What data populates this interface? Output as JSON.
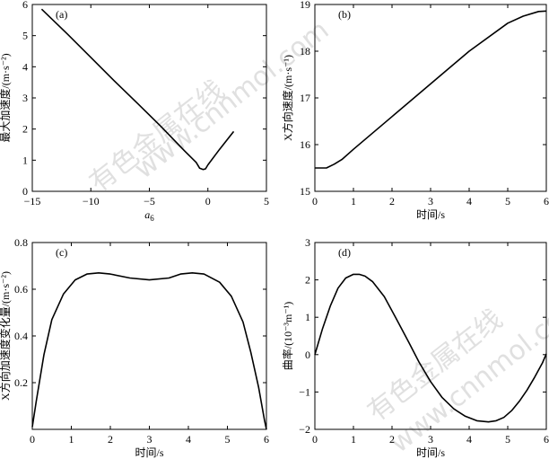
{
  "watermark": {
    "cn": "有色金属在线",
    "url": "www.cnnmol.com"
  },
  "chart_data": [
    {
      "panel": "(a)",
      "type": "line",
      "xlabel": "a",
      "xlabel_sub": "6",
      "ylabel": "最大加速度/(m·s⁻²)",
      "xlim": [
        -15,
        5
      ],
      "ylim": [
        0,
        6
      ],
      "xticks": [
        -15,
        -10,
        -5,
        0,
        5
      ],
      "yticks": [
        0,
        1,
        2,
        3,
        4,
        5,
        6
      ],
      "x": [
        -14.2,
        -12,
        -10,
        -8,
        -6,
        -4,
        -2,
        -1.0,
        -0.7,
        -0.4,
        -0.2,
        0,
        1,
        2.2
      ],
      "y": [
        5.85,
        5.05,
        4.3,
        3.55,
        2.82,
        2.08,
        1.3,
        0.93,
        0.74,
        0.7,
        0.72,
        0.85,
        1.35,
        1.92
      ]
    },
    {
      "panel": "(b)",
      "type": "line",
      "xlabel": "时间/s",
      "ylabel": "X方向速度/(m·s⁻¹)",
      "xlim": [
        0,
        6
      ],
      "ylim": [
        15,
        19
      ],
      "xticks": [
        0,
        1,
        2,
        3,
        4,
        5,
        6
      ],
      "yticks": [
        15,
        16,
        17,
        18,
        19
      ],
      "x": [
        0,
        0.3,
        0.5,
        0.7,
        1,
        2,
        3,
        4,
        5,
        5.4,
        5.8,
        6
      ],
      "y": [
        15.5,
        15.5,
        15.58,
        15.68,
        15.9,
        16.6,
        17.3,
        18.0,
        18.6,
        18.75,
        18.85,
        18.86
      ]
    },
    {
      "panel": "(c)",
      "type": "line",
      "xlabel": "时间/s",
      "ylabel": "X方向加速度变化量/(m·s⁻²)",
      "xlim": [
        0,
        6
      ],
      "ylim": [
        0,
        0.8
      ],
      "xticks": [
        0,
        1,
        2,
        3,
        4,
        5,
        6
      ],
      "yticks": [
        0.2,
        0.4,
        0.6,
        0.8
      ],
      "x": [
        0,
        0.1,
        0.3,
        0.5,
        0.8,
        1.1,
        1.4,
        1.7,
        2.0,
        2.5,
        3.0,
        3.5,
        3.8,
        4.1,
        4.4,
        4.8,
        5.1,
        5.4,
        5.6,
        5.8,
        5.95,
        6
      ],
      "y": [
        0.01,
        0.12,
        0.32,
        0.47,
        0.58,
        0.64,
        0.665,
        0.67,
        0.665,
        0.648,
        0.64,
        0.648,
        0.665,
        0.67,
        0.665,
        0.63,
        0.57,
        0.46,
        0.33,
        0.18,
        0.04,
        0.0
      ]
    },
    {
      "panel": "(d)",
      "type": "line",
      "xlabel": "时间/s",
      "ylabel": "曲率/(10⁻³m⁻¹)",
      "xlim": [
        0,
        6
      ],
      "ylim": [
        -2,
        3
      ],
      "xticks": [
        0,
        1,
        2,
        3,
        4,
        5,
        6
      ],
      "yticks": [
        -2,
        -1,
        0,
        1,
        2,
        3
      ],
      "x": [
        0,
        0.2,
        0.4,
        0.6,
        0.8,
        1.0,
        1.15,
        1.3,
        1.5,
        1.8,
        2.1,
        2.4,
        2.7,
        3.0,
        3.3,
        3.6,
        3.9,
        4.2,
        4.5,
        4.7,
        4.9,
        5.1,
        5.3,
        5.5,
        5.7,
        5.9,
        6
      ],
      "y": [
        0.0,
        0.7,
        1.3,
        1.78,
        2.05,
        2.15,
        2.15,
        2.1,
        1.95,
        1.55,
        0.98,
        0.4,
        -0.2,
        -0.72,
        -1.15,
        -1.45,
        -1.65,
        -1.77,
        -1.8,
        -1.77,
        -1.68,
        -1.5,
        -1.25,
        -0.95,
        -0.6,
        -0.22,
        0.02
      ]
    }
  ]
}
